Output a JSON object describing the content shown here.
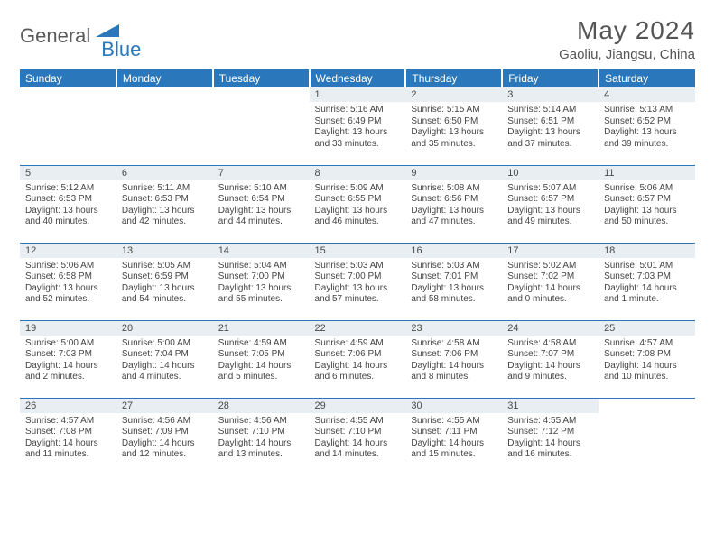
{
  "brand": {
    "text1": "General",
    "text2": "Blue",
    "color_gray": "#5a5a5a",
    "color_blue": "#2a78bb"
  },
  "title": "May 2024",
  "location": "Gaoliu, Jiangsu, China",
  "header_bg": "#2a78bb",
  "daynum_bg": "#e9eef2",
  "border_color": "#2a78bb",
  "dow": [
    "Sunday",
    "Monday",
    "Tuesday",
    "Wednesday",
    "Thursday",
    "Friday",
    "Saturday"
  ],
  "weeks": [
    [
      {
        "n": "",
        "sr": "",
        "ss": "",
        "dl": ""
      },
      {
        "n": "",
        "sr": "",
        "ss": "",
        "dl": ""
      },
      {
        "n": "",
        "sr": "",
        "ss": "",
        "dl": ""
      },
      {
        "n": "1",
        "sr": "Sunrise: 5:16 AM",
        "ss": "Sunset: 6:49 PM",
        "dl": "Daylight: 13 hours and 33 minutes."
      },
      {
        "n": "2",
        "sr": "Sunrise: 5:15 AM",
        "ss": "Sunset: 6:50 PM",
        "dl": "Daylight: 13 hours and 35 minutes."
      },
      {
        "n": "3",
        "sr": "Sunrise: 5:14 AM",
        "ss": "Sunset: 6:51 PM",
        "dl": "Daylight: 13 hours and 37 minutes."
      },
      {
        "n": "4",
        "sr": "Sunrise: 5:13 AM",
        "ss": "Sunset: 6:52 PM",
        "dl": "Daylight: 13 hours and 39 minutes."
      }
    ],
    [
      {
        "n": "5",
        "sr": "Sunrise: 5:12 AM",
        "ss": "Sunset: 6:53 PM",
        "dl": "Daylight: 13 hours and 40 minutes."
      },
      {
        "n": "6",
        "sr": "Sunrise: 5:11 AM",
        "ss": "Sunset: 6:53 PM",
        "dl": "Daylight: 13 hours and 42 minutes."
      },
      {
        "n": "7",
        "sr": "Sunrise: 5:10 AM",
        "ss": "Sunset: 6:54 PM",
        "dl": "Daylight: 13 hours and 44 minutes."
      },
      {
        "n": "8",
        "sr": "Sunrise: 5:09 AM",
        "ss": "Sunset: 6:55 PM",
        "dl": "Daylight: 13 hours and 46 minutes."
      },
      {
        "n": "9",
        "sr": "Sunrise: 5:08 AM",
        "ss": "Sunset: 6:56 PM",
        "dl": "Daylight: 13 hours and 47 minutes."
      },
      {
        "n": "10",
        "sr": "Sunrise: 5:07 AM",
        "ss": "Sunset: 6:57 PM",
        "dl": "Daylight: 13 hours and 49 minutes."
      },
      {
        "n": "11",
        "sr": "Sunrise: 5:06 AM",
        "ss": "Sunset: 6:57 PM",
        "dl": "Daylight: 13 hours and 50 minutes."
      }
    ],
    [
      {
        "n": "12",
        "sr": "Sunrise: 5:06 AM",
        "ss": "Sunset: 6:58 PM",
        "dl": "Daylight: 13 hours and 52 minutes."
      },
      {
        "n": "13",
        "sr": "Sunrise: 5:05 AM",
        "ss": "Sunset: 6:59 PM",
        "dl": "Daylight: 13 hours and 54 minutes."
      },
      {
        "n": "14",
        "sr": "Sunrise: 5:04 AM",
        "ss": "Sunset: 7:00 PM",
        "dl": "Daylight: 13 hours and 55 minutes."
      },
      {
        "n": "15",
        "sr": "Sunrise: 5:03 AM",
        "ss": "Sunset: 7:00 PM",
        "dl": "Daylight: 13 hours and 57 minutes."
      },
      {
        "n": "16",
        "sr": "Sunrise: 5:03 AM",
        "ss": "Sunset: 7:01 PM",
        "dl": "Daylight: 13 hours and 58 minutes."
      },
      {
        "n": "17",
        "sr": "Sunrise: 5:02 AM",
        "ss": "Sunset: 7:02 PM",
        "dl": "Daylight: 14 hours and 0 minutes."
      },
      {
        "n": "18",
        "sr": "Sunrise: 5:01 AM",
        "ss": "Sunset: 7:03 PM",
        "dl": "Daylight: 14 hours and 1 minute."
      }
    ],
    [
      {
        "n": "19",
        "sr": "Sunrise: 5:00 AM",
        "ss": "Sunset: 7:03 PM",
        "dl": "Daylight: 14 hours and 2 minutes."
      },
      {
        "n": "20",
        "sr": "Sunrise: 5:00 AM",
        "ss": "Sunset: 7:04 PM",
        "dl": "Daylight: 14 hours and 4 minutes."
      },
      {
        "n": "21",
        "sr": "Sunrise: 4:59 AM",
        "ss": "Sunset: 7:05 PM",
        "dl": "Daylight: 14 hours and 5 minutes."
      },
      {
        "n": "22",
        "sr": "Sunrise: 4:59 AM",
        "ss": "Sunset: 7:06 PM",
        "dl": "Daylight: 14 hours and 6 minutes."
      },
      {
        "n": "23",
        "sr": "Sunrise: 4:58 AM",
        "ss": "Sunset: 7:06 PM",
        "dl": "Daylight: 14 hours and 8 minutes."
      },
      {
        "n": "24",
        "sr": "Sunrise: 4:58 AM",
        "ss": "Sunset: 7:07 PM",
        "dl": "Daylight: 14 hours and 9 minutes."
      },
      {
        "n": "25",
        "sr": "Sunrise: 4:57 AM",
        "ss": "Sunset: 7:08 PM",
        "dl": "Daylight: 14 hours and 10 minutes."
      }
    ],
    [
      {
        "n": "26",
        "sr": "Sunrise: 4:57 AM",
        "ss": "Sunset: 7:08 PM",
        "dl": "Daylight: 14 hours and 11 minutes."
      },
      {
        "n": "27",
        "sr": "Sunrise: 4:56 AM",
        "ss": "Sunset: 7:09 PM",
        "dl": "Daylight: 14 hours and 12 minutes."
      },
      {
        "n": "28",
        "sr": "Sunrise: 4:56 AM",
        "ss": "Sunset: 7:10 PM",
        "dl": "Daylight: 14 hours and 13 minutes."
      },
      {
        "n": "29",
        "sr": "Sunrise: 4:55 AM",
        "ss": "Sunset: 7:10 PM",
        "dl": "Daylight: 14 hours and 14 minutes."
      },
      {
        "n": "30",
        "sr": "Sunrise: 4:55 AM",
        "ss": "Sunset: 7:11 PM",
        "dl": "Daylight: 14 hours and 15 minutes."
      },
      {
        "n": "31",
        "sr": "Sunrise: 4:55 AM",
        "ss": "Sunset: 7:12 PM",
        "dl": "Daylight: 14 hours and 16 minutes."
      },
      {
        "n": "",
        "sr": "",
        "ss": "",
        "dl": ""
      }
    ]
  ]
}
